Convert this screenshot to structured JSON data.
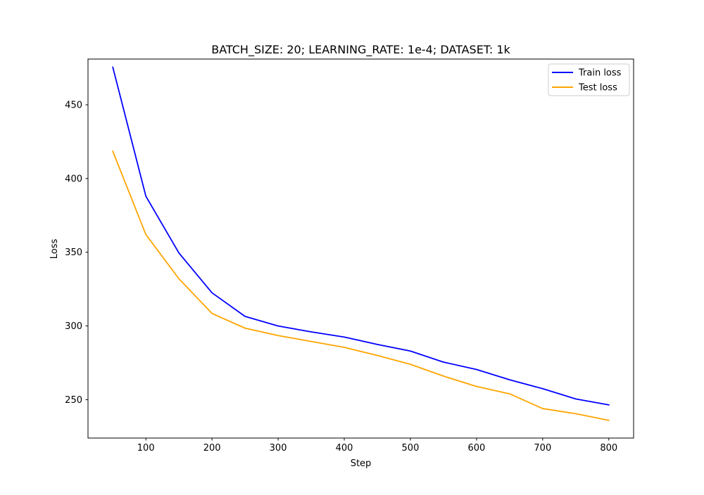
{
  "chart_data": {
    "type": "line",
    "title": "BATCH_SIZE: 20; LEARNING_RATE: 1e-4; DATASET: 1k",
    "xlabel": "Step",
    "ylabel": "Loss",
    "x": [
      50,
      100,
      150,
      200,
      250,
      300,
      350,
      400,
      450,
      500,
      550,
      600,
      650,
      700,
      750,
      800
    ],
    "xlim": [
      12.5,
      837.5
    ],
    "ylim": [
      224,
      481
    ],
    "xticks": [
      100,
      200,
      300,
      400,
      500,
      600,
      700,
      800
    ],
    "yticks": [
      250,
      300,
      350,
      400,
      450
    ],
    "grid": false,
    "legend_position": "top-right",
    "series": [
      {
        "name": "Train loss",
        "color": "#0000ff",
        "values": [
          475.5,
          388,
          349.5,
          322.5,
          306.5,
          300,
          296,
          292.5,
          287.5,
          283,
          275.5,
          270.5,
          263.5,
          257.5,
          250.5,
          246.5
        ]
      },
      {
        "name": "Test loss",
        "color": "#ffa500",
        "values": [
          418.5,
          362,
          332,
          308.5,
          298.5,
          293.5,
          289.5,
          285.5,
          280,
          274,
          266,
          259,
          254,
          244,
          240.5,
          236
        ]
      }
    ]
  }
}
